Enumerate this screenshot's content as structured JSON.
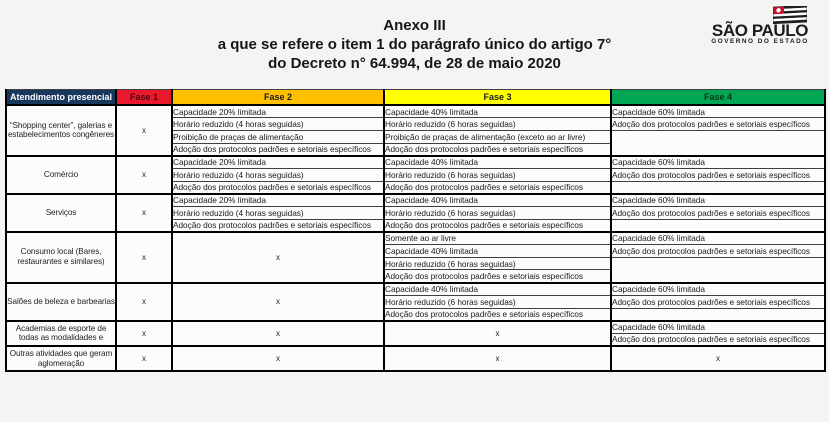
{
  "title": {
    "line1": "Anexo III",
    "line2": "a que se refere o item 1 do parágrafo único do artigo 7°",
    "line3": "do Decreto n° 64.994, de 28 de maio 2020"
  },
  "logo": {
    "name": "SÃO PAULO",
    "subtitle": "GOVERNO DO ESTADO",
    "flag_icon": "sao-paulo-state-flag",
    "flag_colors": {
      "stripe_dark": "#1d1d1d",
      "stripe_light": "#ffffff",
      "canton_red": "#c8102e"
    }
  },
  "table": {
    "header": {
      "category_label": "Atendimento presencial",
      "category_bg": "#17375d",
      "category_fg": "#ffffff",
      "phases": [
        {
          "label": "Fase 1",
          "bg": "#e8192c",
          "fg": "#40090c"
        },
        {
          "label": "Fase 2",
          "bg": "#ffc000",
          "fg": "#1a1a1a"
        },
        {
          "label": "Fase 3",
          "bg": "#ffff00",
          "fg": "#1a1a1a"
        },
        {
          "label": "Fase 4",
          "bg": "#00a651",
          "fg": "#0b3517"
        }
      ]
    },
    "rows": [
      {
        "category": "“Shopping center”, galerias e estabelecimentos congêneres",
        "lines": 4,
        "fase1": "x",
        "fase2": [
          "Capacidade 20% limitada",
          "Horário reduzido (4 horas seguidas)",
          "Proibição de praças de alimentação",
          "Adoção dos protocolos padrões e setoriais específicos"
        ],
        "fase3": [
          "Capacidade 40% limitada",
          "Horário reduzido (6 horas seguidas)",
          "Proibição de praças de alimentação (exceto ao ar livre)",
          "Adoção dos protocolos padrões e setoriais específicos"
        ],
        "fase4": [
          "Capacidade 60% limitada",
          "Adoção dos protocolos padrões e setoriais específicos"
        ]
      },
      {
        "category": "Comércio",
        "lines": 3,
        "fase1": "x",
        "fase2": [
          "Capacidade 20% limitada",
          "Horário reduzido (4 horas seguidas)",
          "Adoção dos protocolos padrões e setoriais específicos"
        ],
        "fase3": [
          "Capacidade 40% limitada",
          "Horário reduzido (6 horas seguidas)",
          "Adoção dos protocolos padrões e setoriais específicos"
        ],
        "fase4": [
          "Capacidade 60% limitada",
          "Adoção dos protocolos padrões e setoriais específicos"
        ]
      },
      {
        "category": "Serviços",
        "lines": 3,
        "fase1": "x",
        "fase2": [
          "Capacidade 20% limitada",
          "Horário reduzido (4 horas seguidas)",
          "Adoção dos protocolos padrões e setoriais específicos"
        ],
        "fase3": [
          "Capacidade 40% limitada",
          "Horário reduzido (6 horas seguidas)",
          "Adoção dos protocolos padrões e setoriais específicos"
        ],
        "fase4": [
          "Capacidade 60% limitada",
          "Adoção dos protocolos padrões e setoriais específicos"
        ]
      },
      {
        "category": "Consumo local (Bares, restaurantes e similares)",
        "lines": 4,
        "fase1": "x",
        "fase2": "x",
        "fase3": [
          "Somente ao ar livre",
          "Capacidade 40% limitada",
          "Horário reduzido (6 horas seguidas)",
          "Adoção dos protocolos padrões e setoriais específicos"
        ],
        "fase4": [
          "Capacidade 60% limitada",
          "Adoção dos protocolos padrões e setoriais específicos"
        ]
      },
      {
        "category": "Salões de beleza e barbearias",
        "lines": 3,
        "fase1": "x",
        "fase2": "x",
        "fase3": [
          "Capacidade 40% limitada",
          "Horário reduzido (6 horas seguidas)",
          "Adoção dos protocolos padrões e setoriais específicos"
        ],
        "fase4": [
          "Capacidade 60% limitada",
          "Adoção dos protocolos padrões e setoriais específicos"
        ]
      },
      {
        "category": "Academias de esporte de todas as modalidades e",
        "lines": 2,
        "fase1": "x",
        "fase2": "x",
        "fase3": "x",
        "fase4": [
          "Capacidade 60% limitada",
          "Adoção dos protocolos padrões e setoriais específicos"
        ]
      },
      {
        "category": "Outras atividades que geram aglomeração",
        "lines": 2,
        "fase1": "x",
        "fase2": "x",
        "fase3": "x",
        "fase4": "x"
      }
    ]
  }
}
